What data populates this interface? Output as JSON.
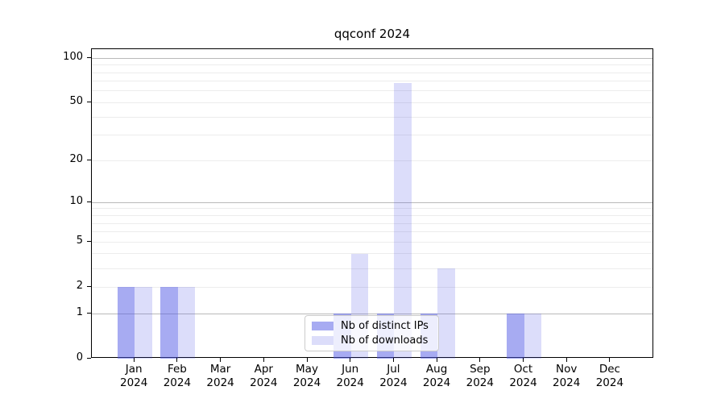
{
  "title": "qqconf 2024",
  "legend": {
    "items": [
      {
        "label": "Nb of distinct IPs",
        "color": "rgba(80,87,230,0.5)"
      },
      {
        "label": "Nb of downloads",
        "color": "rgba(80,87,230,0.2)"
      }
    ]
  },
  "colors": {
    "bar_base": "#5057e6",
    "grid_minor": "#ececec",
    "grid_major": "#b9b9b9",
    "axis": "#000000",
    "legend_border": "#cccccc",
    "text": "#000000"
  },
  "chart_data": {
    "type": "bar",
    "title": "qqconf 2024",
    "categories": [
      "Jan 2024",
      "Feb 2024",
      "Mar 2024",
      "Apr 2024",
      "May 2024",
      "Jun 2024",
      "Jul 2024",
      "Aug 2024",
      "Sep 2024",
      "Oct 2024",
      "Nov 2024",
      "Dec 2024"
    ],
    "series": [
      {
        "name": "Nb of distinct IPs",
        "values": [
          2,
          2,
          0,
          0,
          0,
          1,
          1,
          1,
          0,
          1,
          0,
          0
        ],
        "color": "rgba(80,87,230,0.5)"
      },
      {
        "name": "Nb of downloads",
        "values": [
          2,
          2,
          0,
          0,
          0,
          4,
          68,
          3,
          0,
          1,
          0,
          0
        ],
        "color": "rgba(80,87,230,0.2)"
      }
    ],
    "xlabel": "",
    "ylabel": "",
    "yscale": "log1p",
    "ylim": [
      0,
      115
    ],
    "y_ticks": [
      0,
      1,
      2,
      5,
      10,
      20,
      50,
      100
    ],
    "y_minor_gridlines": [
      2,
      3,
      4,
      5,
      6,
      7,
      8,
      9,
      20,
      30,
      40,
      50,
      60,
      70,
      80,
      90
    ],
    "y_major_gridlines": [
      1,
      10,
      100
    ],
    "grid": true,
    "legend_position": "lower center"
  }
}
